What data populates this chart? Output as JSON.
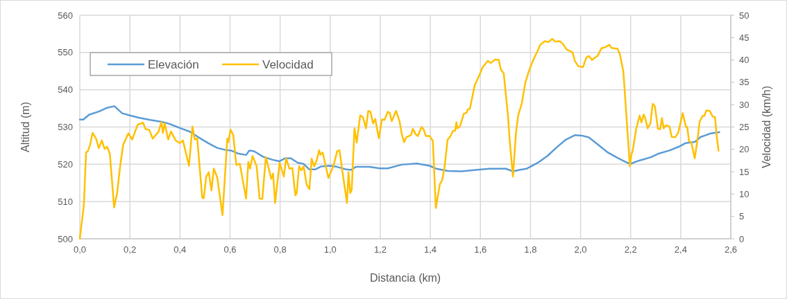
{
  "chart_data": {
    "type": "line",
    "xlabel": "Distancia (km)",
    "ylabel": "Altitud (m)",
    "y2label": "Velocidad (km/h)",
    "xlim": [
      0,
      2.6
    ],
    "xticks": [
      {
        "value": 0,
        "label": "0,0"
      },
      {
        "value": 0.2,
        "label": "0,2"
      },
      {
        "value": 0.4,
        "label": "0,4"
      },
      {
        "value": 0.6,
        "label": "0,6"
      },
      {
        "value": 0.8,
        "label": "0,8"
      },
      {
        "value": 1,
        "label": "1,0"
      },
      {
        "value": 1.2,
        "label": "1,2"
      },
      {
        "value": 1.4,
        "label": "1,4"
      },
      {
        "value": 1.6,
        "label": "1,6"
      },
      {
        "value": 1.8,
        "label": "1,8"
      },
      {
        "value": 2,
        "label": "2,0"
      },
      {
        "value": 2.2,
        "label": "2,2"
      },
      {
        "value": 2.4,
        "label": "2,4"
      },
      {
        "value": 2.6,
        "label": "2,6"
      }
    ],
    "ylim": [
      500,
      560
    ],
    "yticks": [
      500,
      510,
      520,
      530,
      540,
      550,
      560
    ],
    "y2lim": [
      0,
      50
    ],
    "y2ticks": [
      0,
      5,
      10,
      15,
      20,
      25,
      30,
      35,
      40,
      45,
      50
    ],
    "grid": true,
    "legend": "top left",
    "line_style": "solid",
    "marker": "none",
    "series": [
      {
        "name": "Elevación",
        "color": "#5b9bd5",
        "x": [
          0,
          0.014,
          0.037,
          0.078,
          0.106,
          0.138,
          0.169,
          0.2,
          0.235,
          0.281,
          0.327,
          0.355,
          0.401,
          0.438,
          0.475,
          0.512,
          0.548,
          0.585,
          0.604,
          0.631,
          0.664,
          0.677,
          0.696,
          0.733,
          0.77,
          0.797,
          0.82,
          0.843,
          0.871,
          0.894,
          0.917,
          0.94,
          0.963,
          1.0,
          1.028,
          1.065,
          1.083,
          1.102,
          1.157,
          1.198,
          1.23,
          1.286,
          1.346,
          1.397,
          1.424,
          1.47,
          1.526,
          1.581,
          1.637,
          1.702,
          1.73,
          1.756,
          1.784,
          1.829,
          1.867,
          1.904,
          1.941,
          1.977,
          2.005,
          2.033,
          2.069,
          2.106,
          2.143,
          2.175,
          2.198,
          2.235,
          2.281,
          2.309,
          2.355,
          2.392,
          2.42,
          2.457,
          2.479,
          2.521,
          2.554
        ],
        "values": [
          532,
          532,
          533.3,
          534.2,
          535.1,
          535.6,
          533.7,
          533.1,
          532.5,
          531.9,
          531.4,
          530.9,
          529.7,
          528.8,
          527.2,
          525.7,
          524.4,
          523.8,
          523.7,
          522.9,
          522.5,
          523.7,
          523.5,
          522,
          521.2,
          520.8,
          521.6,
          521.6,
          520.4,
          520.1,
          518.6,
          518.6,
          519.4,
          519.6,
          519.3,
          518.6,
          518.5,
          519.3,
          519.3,
          518.9,
          518.9,
          519.9,
          520.2,
          519.6,
          518.8,
          518.2,
          518.1,
          518.5,
          518.8,
          518.8,
          518.1,
          518.5,
          518.8,
          520.4,
          522.2,
          524.5,
          526.6,
          527.8,
          527.7,
          527.2,
          525.3,
          523.3,
          521.9,
          520.8,
          520.1,
          521,
          521.9,
          522.8,
          523.7,
          524.7,
          525.7,
          526,
          527.3,
          528.3,
          528.6
        ]
      },
      {
        "name": "Velocidad",
        "color": "#ffc000",
        "axis": "y2",
        "x": [
          0,
          0.016,
          0.025,
          0.032,
          0.041,
          0.051,
          0.065,
          0.076,
          0.088,
          0.099,
          0.109,
          0.12,
          0.137,
          0.149,
          0.161,
          0.173,
          0.194,
          0.209,
          0.231,
          0.252,
          0.263,
          0.277,
          0.291,
          0.314,
          0.326,
          0.332,
          0.339,
          0.353,
          0.364,
          0.383,
          0.399,
          0.412,
          0.436,
          0.45,
          0.459,
          0.469,
          0.489,
          0.495,
          0.505,
          0.515,
          0.526,
          0.535,
          0.549,
          0.57,
          0.589,
          0.593,
          0.602,
          0.613,
          0.625,
          0.639,
          0.664,
          0.673,
          0.68,
          0.69,
          0.706,
          0.718,
          0.729,
          0.743,
          0.765,
          0.772,
          0.78,
          0.798,
          0.815,
          0.824,
          0.837,
          0.849,
          0.861,
          0.866,
          0.876,
          0.885,
          0.894,
          0.906,
          0.917,
          0.926,
          0.936,
          0.947,
          0.956,
          0.961,
          0.97,
          0.993,
          1.014,
          1.028,
          1.037,
          1.067,
          1.073,
          1.08,
          1.086,
          1.097,
          1.106,
          1.12,
          1.131,
          1.143,
          1.152,
          1.161,
          1.171,
          1.18,
          1.194,
          1.207,
          1.217,
          1.23,
          1.238,
          1.246,
          1.263,
          1.277,
          1.286,
          1.295,
          1.304,
          1.323,
          1.33,
          1.341,
          1.35,
          1.365,
          1.373,
          1.382,
          1.397,
          1.41,
          1.422,
          1.438,
          1.447,
          1.456,
          1.469,
          1.479,
          1.49,
          1.499,
          1.504,
          1.508,
          1.518,
          1.534,
          1.545,
          1.549,
          1.558,
          1.577,
          1.595,
          1.609,
          1.63,
          1.641,
          1.659,
          1.673,
          1.682,
          1.693,
          1.71,
          1.717,
          1.73,
          1.742,
          1.751,
          1.765,
          1.779,
          1.793,
          1.811,
          1.825,
          1.839,
          1.857,
          1.871,
          1.887,
          1.899,
          1.917,
          1.929,
          1.945,
          1.968,
          1.977,
          1.991,
          2.01,
          2.023,
          2.033,
          2.046,
          2.069,
          2.083,
          2.097,
          2.115,
          2.124,
          2.148,
          2.157,
          2.171,
          2.185,
          2.197,
          2.203,
          2.208,
          2.222,
          2.236,
          2.243,
          2.252,
          2.258,
          2.268,
          2.279,
          2.288,
          2.297,
          2.309,
          2.318,
          2.325,
          2.332,
          2.341,
          2.355,
          2.364,
          2.378,
          2.39,
          2.408,
          2.421,
          2.426,
          2.433,
          2.442,
          2.456,
          2.465,
          2.476,
          2.488,
          2.495,
          2.502,
          2.516,
          2.528,
          2.537,
          2.544,
          2.551
        ],
        "values": [
          0,
          7.4,
          19.3,
          19.6,
          21,
          23.7,
          22.4,
          20.3,
          22,
          20.1,
          20.6,
          19,
          7,
          10.2,
          16.2,
          21,
          23.6,
          22.2,
          25.5,
          26,
          24.5,
          24.4,
          22.4,
          23.9,
          26.1,
          23.7,
          25.8,
          22.2,
          24,
          22,
          21.4,
          22,
          16.3,
          25.1,
          22.2,
          22.4,
          9.2,
          9.1,
          13.9,
          14.9,
          10.8,
          15.7,
          13.7,
          5.3,
          22.4,
          21.6,
          24.4,
          23.2,
          16.5,
          16.8,
          9,
          17.2,
          15.7,
          18.5,
          16.3,
          9,
          8.9,
          18.3,
          13.4,
          14.6,
          8,
          17,
          13.9,
          18,
          15.7,
          15.8,
          9.7,
          10.2,
          16.2,
          15.3,
          16.2,
          12.1,
          11.1,
          17.9,
          16.2,
          17.7,
          19.8,
          18.8,
          19.3,
          13.6,
          16.5,
          19.6,
          19.8,
          8,
          14.9,
          10.2,
          11,
          24.7,
          21.5,
          27.6,
          27.2,
          24.7,
          28.6,
          28.4,
          25.8,
          26.8,
          22.5,
          26.7,
          26.6,
          28.4,
          28.2,
          26.3,
          28.6,
          26.3,
          23.4,
          21.6,
          22.7,
          23.2,
          24.6,
          23.4,
          23,
          25,
          24.5,
          23,
          23,
          21.9,
          6.9,
          12.2,
          13.1,
          15.7,
          22.2,
          22.8,
          24.1,
          24.2,
          26.1,
          24.7,
          25.1,
          28,
          28.2,
          28.9,
          29.1,
          34.3,
          36.5,
          38.4,
          39.8,
          39.3,
          40.1,
          40,
          37.8,
          37,
          27.6,
          21.9,
          13.9,
          23.7,
          27.6,
          30.2,
          34.8,
          37.4,
          40,
          41.6,
          43.4,
          44.2,
          44,
          44.7,
          44.1,
          44.2,
          43.6,
          42.3,
          41.7,
          39.8,
          38.6,
          38.4,
          40.5,
          40.9,
          40,
          41,
          42.6,
          42.8,
          43.4,
          42.7,
          42.5,
          41.3,
          37.4,
          26,
          16.2,
          18.8,
          19.6,
          24.5,
          27.6,
          26,
          27.8,
          27,
          24.7,
          25.8,
          30.2,
          29.6,
          24.6,
          24.5,
          27,
          24.7,
          25.4,
          25.1,
          22.8,
          22.7,
          23.7,
          28.1,
          25,
          25,
          21.9,
          21.6,
          18,
          21.4,
          26.3,
          27.5,
          27.5,
          28.7,
          28.6,
          27.3,
          27.2,
          22.9,
          19.7
        ]
      }
    ]
  }
}
